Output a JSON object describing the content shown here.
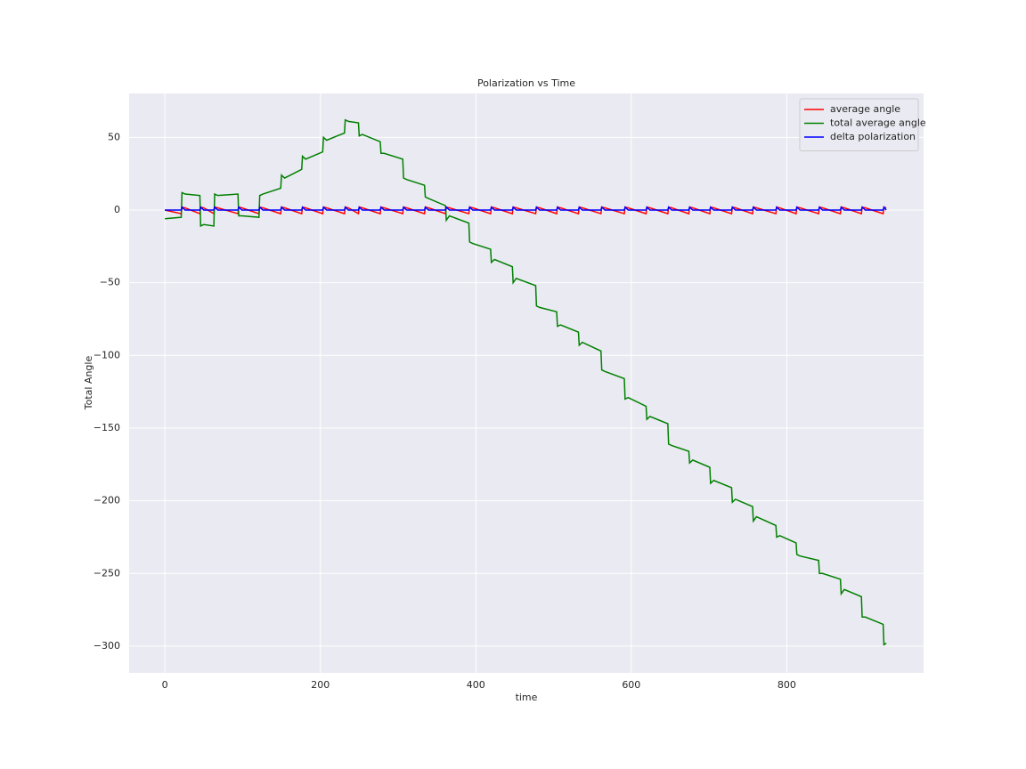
{
  "chart_data": {
    "type": "line",
    "title": "Polarization vs Time",
    "x_label": "time",
    "y_label": "Total Angle",
    "x": [
      0,
      21,
      22,
      26,
      45,
      46,
      50,
      63,
      64,
      68,
      94,
      95,
      99,
      121,
      122,
      126,
      149,
      150,
      154,
      176,
      177,
      181,
      203,
      204,
      208,
      231,
      232,
      236,
      249,
      250,
      254,
      277,
      278,
      282,
      306,
      307,
      311,
      334,
      335,
      339,
      361,
      362,
      366,
      391,
      392,
      396,
      419,
      420,
      424,
      447,
      448,
      452,
      477,
      478,
      482,
      504,
      505,
      509,
      532,
      533,
      537,
      561,
      562,
      566,
      591,
      592,
      596,
      619,
      620,
      624,
      647,
      648,
      652,
      674,
      675,
      679,
      701,
      702,
      706,
      729,
      730,
      734,
      756,
      757,
      761,
      786,
      787,
      791,
      812,
      813,
      817,
      841,
      842,
      846,
      869,
      870,
      874,
      896,
      897,
      901,
      924,
      925,
      928
    ],
    "series": [
      {
        "name": "average angle",
        "color": "#ff0000",
        "values": [
          0,
          -2.5,
          2,
          1.5,
          -2.5,
          2,
          1.5,
          -2.5,
          2,
          1.5,
          -2.5,
          2,
          1.5,
          -2.5,
          2,
          1.5,
          -2.5,
          2,
          1.5,
          -2.5,
          2,
          1.5,
          -2.5,
          2,
          1.5,
          -2.5,
          2,
          1.5,
          -2.5,
          2,
          1.5,
          -2.5,
          2,
          1.5,
          -2.5,
          2,
          1.5,
          -2.5,
          2,
          1.5,
          -2.5,
          2,
          1.5,
          -2.5,
          2,
          1.5,
          -2.5,
          2,
          1.5,
          -2.5,
          2,
          1.5,
          -2.5,
          2,
          1.5,
          -2.5,
          2,
          1.5,
          -2.5,
          2,
          1.5,
          -2.5,
          2,
          1.5,
          -2.5,
          2,
          1.5,
          -2.5,
          2,
          1.5,
          -2.5,
          2,
          1.5,
          -2.5,
          2,
          1.5,
          -2.5,
          2,
          1.5,
          -2.5,
          2,
          1.5,
          -2.5,
          2,
          1.5,
          -2.5,
          2,
          1.5,
          -2.5,
          2,
          1.5,
          -2.5,
          2,
          1.5,
          -2.5,
          2,
          1.5,
          -2.5,
          2,
          1.5,
          -2.5,
          2,
          1.5
        ]
      },
      {
        "name": "total average angle",
        "color": "#008000",
        "values": [
          -6,
          -5,
          12,
          11,
          10,
          -11,
          -10,
          -11,
          11,
          10,
          11,
          -4,
          -4,
          -5,
          10,
          11,
          15,
          24,
          22,
          28,
          37,
          35,
          40,
          50,
          48,
          53,
          62,
          61,
          60,
          51,
          52,
          47,
          39,
          39,
          35,
          22,
          21,
          17,
          9,
          8,
          3,
          -7,
          -4,
          -9,
          -22,
          -23,
          -27,
          -36,
          -34,
          -39,
          -50,
          -47,
          -52,
          -66,
          -67,
          -70,
          -80,
          -79,
          -84,
          -93,
          -91,
          -97,
          -110,
          -111,
          -116,
          -130,
          -129,
          -135,
          -144,
          -142,
          -147,
          -161,
          -162,
          -166,
          -174,
          -172,
          -177,
          -188,
          -186,
          -191,
          -201,
          -199,
          -204,
          -214,
          -211,
          -217,
          -225,
          -224,
          -229,
          -237,
          -238,
          -241,
          -250,
          -250,
          -254,
          -264,
          -261,
          -266,
          -280,
          -280,
          -285,
          -299,
          -298
        ]
      },
      {
        "name": "delta polarization",
        "color": "#0000ff",
        "values": [
          0,
          0,
          2,
          0,
          0,
          2,
          0,
          0,
          2,
          0,
          0,
          2,
          0,
          0,
          2,
          0,
          0,
          2,
          0,
          0,
          2,
          0,
          0,
          2,
          0,
          0,
          2,
          0,
          0,
          2,
          0,
          0,
          2,
          0,
          0,
          2,
          0,
          0,
          2,
          0,
          0,
          2,
          0,
          0,
          2,
          0,
          0,
          2,
          0,
          0,
          2,
          0,
          0,
          2,
          0,
          0,
          2,
          0,
          0,
          2,
          0,
          0,
          2,
          0,
          0,
          2,
          0,
          0,
          2,
          0,
          0,
          2,
          0,
          0,
          2,
          0,
          0,
          2,
          0,
          0,
          2,
          0,
          0,
          2,
          0,
          0,
          2,
          0,
          0,
          2,
          0,
          0,
          2,
          0,
          0,
          2,
          0,
          0,
          2,
          0,
          0,
          2,
          0
        ]
      }
    ],
    "xlim": [
      -46,
      976
    ],
    "xticks": [
      0,
      200,
      400,
      600,
      800
    ],
    "ylim": [
      -318.4,
      80.2
    ],
    "yticks": [
      50,
      0,
      {
        "value": -50,
        "label": "−50"
      },
      {
        "value": -100,
        "label": "−100"
      },
      {
        "value": -150,
        "label": "−150"
      },
      {
        "value": -200,
        "label": "−200"
      },
      {
        "value": -250,
        "label": "−250"
      },
      {
        "value": -300,
        "label": "−300"
      }
    ],
    "grid": true,
    "legend": "upper right"
  }
}
